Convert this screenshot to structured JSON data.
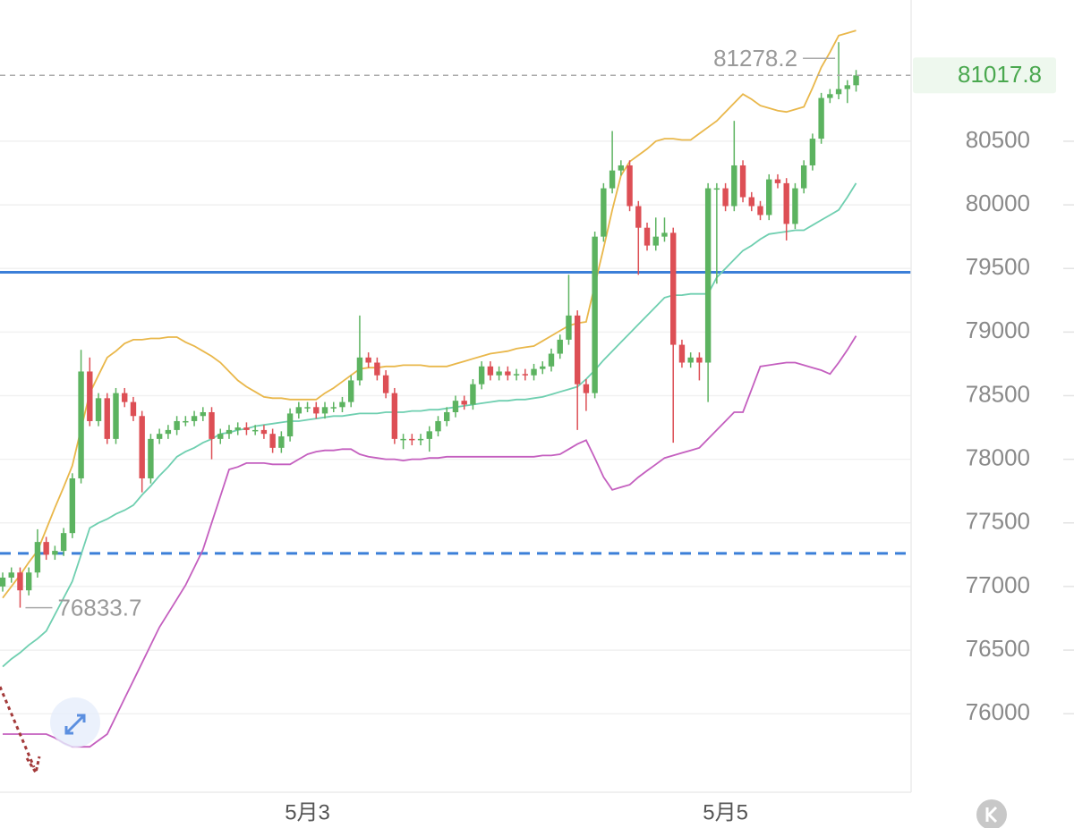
{
  "chart_data": {
    "type": "candlestick",
    "categories": [
      null,
      null,
      null,
      null,
      null,
      null,
      null,
      null,
      null,
      null,
      null,
      null,
      null,
      null,
      null,
      null,
      null,
      null,
      null,
      null,
      null,
      null,
      null,
      null,
      null,
      null,
      null,
      null,
      null,
      null,
      null,
      null,
      null,
      null,
      null,
      "5月3",
      null,
      null,
      null,
      null,
      null,
      null,
      null,
      null,
      null,
      null,
      null,
      null,
      null,
      null,
      null,
      null,
      null,
      null,
      null,
      null,
      null,
      null,
      null,
      null,
      null,
      null,
      null,
      null,
      null,
      null,
      null,
      null,
      null,
      null,
      null,
      null,
      null,
      null,
      null,
      null,
      null,
      null,
      null,
      null,
      null,
      null,
      null,
      "5月5",
      null,
      null,
      null,
      null,
      null,
      null,
      null,
      null,
      null,
      null,
      null,
      null,
      null,
      null,
      null
    ],
    "open": [
      77000,
      77070,
      77110,
      76970,
      77110,
      77350,
      77250,
      77280,
      77420,
      77850,
      78690,
      78300,
      78480,
      78160,
      78520,
      78450,
      78340,
      77850,
      78160,
      78200,
      78230,
      78300,
      78300,
      78340,
      78370,
      78160,
      78200,
      78230,
      78250,
      78230,
      78230,
      78200,
      78090,
      78180,
      78360,
      78410,
      78410,
      78360,
      78410,
      78410,
      78450,
      78620,
      78800,
      78760,
      78660,
      78520,
      78160,
      78160,
      78150,
      78160,
      78220,
      78300,
      78370,
      78460,
      78430,
      78590,
      78730,
      78660,
      78690,
      78660,
      78670,
      78660,
      78710,
      78730,
      78830,
      78940,
      79130,
      78590,
      78520,
      79750,
      80130,
      80270,
      80310,
      79990,
      79820,
      79680,
      79750,
      79780,
      78900,
      78760,
      78800,
      78760,
      80130,
      80130,
      79990,
      80310,
      80060,
      79990,
      79920,
      80200,
      80170,
      79850,
      80130,
      80310,
      80520,
      80840,
      80870,
      80910,
      80940
    ],
    "high": [
      77110,
      77150,
      77150,
      77150,
      77450,
      77390,
      77320,
      77460,
      77890,
      78860,
      78800,
      78520,
      78520,
      78560,
      78560,
      78490,
      78380,
      78200,
      78240,
      78270,
      78340,
      78340,
      78380,
      78410,
      78410,
      78240,
      78270,
      78290,
      78290,
      78270,
      78270,
      78240,
      78220,
      78400,
      78450,
      78450,
      78450,
      78450,
      78450,
      78490,
      78660,
      79130,
      78840,
      78800,
      78700,
      78560,
      78200,
      78200,
      78200,
      78260,
      78340,
      78410,
      78500,
      78500,
      78630,
      78770,
      78770,
      78730,
      78730,
      78710,
      78710,
      78750,
      78770,
      78870,
      78980,
      79450,
      79170,
      78630,
      79790,
      80170,
      80580,
      80350,
      80350,
      80030,
      79860,
      79900,
      79900,
      79820,
      78940,
      78840,
      78840,
      80170,
      80170,
      80170,
      80660,
      80350,
      80100,
      80030,
      80240,
      80240,
      80210,
      80170,
      80350,
      80560,
      80880,
      80910,
      81278.2,
      80980,
      81060
    ],
    "low": [
      76960,
      77030,
      76833.7,
      76930,
      77070,
      77210,
      77210,
      77240,
      77380,
      77810,
      78260,
      78260,
      78120,
      78120,
      78410,
      78300,
      77740,
      77810,
      78120,
      78160,
      78190,
      78260,
      78260,
      78300,
      78000,
      78120,
      78160,
      78190,
      78190,
      78190,
      78160,
      78050,
      78050,
      78140,
      78320,
      78370,
      78320,
      78320,
      78370,
      78370,
      78410,
      78580,
      78720,
      78620,
      78480,
      78120,
      78080,
      78110,
      78110,
      78060,
      78180,
      78260,
      78330,
      78390,
      78390,
      78550,
      78620,
      78620,
      78620,
      78620,
      78620,
      78620,
      78670,
      78690,
      78790,
      78900,
      78230,
      78380,
      78480,
      79710,
      80090,
      80230,
      79950,
      79450,
      79640,
      79640,
      79710,
      78130,
      78720,
      78720,
      78620,
      78450,
      79380,
      79950,
      79950,
      80020,
      79950,
      79880,
      79880,
      80130,
      79720,
      79810,
      80090,
      80270,
      80480,
      80800,
      80830,
      80800,
      80890
    ],
    "close": [
      77070,
      77110,
      76970,
      77110,
      77350,
      77250,
      77280,
      77420,
      77850,
      78690,
      78300,
      78480,
      78160,
      78520,
      78450,
      78340,
      77850,
      78160,
      78200,
      78230,
      78300,
      78300,
      78340,
      78370,
      78160,
      78200,
      78230,
      78250,
      78230,
      78230,
      78200,
      78090,
      78180,
      78360,
      78410,
      78410,
      78360,
      78410,
      78410,
      78450,
      78620,
      78800,
      78760,
      78660,
      78520,
      78160,
      78160,
      78150,
      78160,
      78220,
      78300,
      78370,
      78460,
      78430,
      78590,
      78730,
      78660,
      78690,
      78660,
      78670,
      78660,
      78710,
      78730,
      78830,
      78940,
      79130,
      78590,
      78520,
      79750,
      80130,
      80270,
      80310,
      79990,
      79820,
      79680,
      79750,
      79780,
      78900,
      78760,
      78800,
      78760,
      80130,
      80130,
      79990,
      80310,
      80060,
      79990,
      79920,
      80200,
      80170,
      79850,
      80130,
      80310,
      80520,
      80840,
      80870,
      80910,
      80940,
      81017.8
    ],
    "up_color": "#5cb360",
    "down_color": "#dd4f55",
    "overlays": [
      {
        "color": "#e9b74a",
        "values": [
          76910,
          77000,
          77090,
          77190,
          77280,
          77450,
          77620,
          77780,
          77950,
          78240,
          78520,
          78660,
          78800,
          78850,
          78910,
          78940,
          78940,
          78950,
          78950,
          78960,
          78960,
          78920,
          78890,
          78850,
          78810,
          78760,
          78690,
          78620,
          78570,
          78530,
          78490,
          78480,
          78480,
          78470,
          78470,
          78470,
          78470,
          78520,
          78560,
          78610,
          78660,
          78710,
          78720,
          78720,
          78730,
          78730,
          78740,
          78740,
          78740,
          78730,
          78730,
          78730,
          78750,
          78770,
          78790,
          78810,
          78830,
          78840,
          78850,
          78870,
          78880,
          78890,
          78930,
          78970,
          79010,
          79050,
          79070,
          79080,
          79370,
          79660,
          79960,
          80230,
          80340,
          80390,
          80440,
          80500,
          80520,
          80520,
          80510,
          80510,
          80560,
          80610,
          80660,
          80730,
          80800,
          80870,
          80830,
          80780,
          80760,
          80740,
          80730,
          80750,
          80770,
          80920,
          81080,
          81200,
          81330,
          81350,
          81370
        ]
      },
      {
        "color": "#6fcfb0",
        "values": [
          76370,
          76430,
          76480,
          76540,
          76590,
          76650,
          76780,
          76910,
          77040,
          77250,
          77460,
          77500,
          77530,
          77570,
          77600,
          77640,
          77720,
          77790,
          77870,
          77940,
          78020,
          78060,
          78090,
          78130,
          78160,
          78200,
          78210,
          78230,
          78240,
          78260,
          78270,
          78280,
          78290,
          78300,
          78300,
          78310,
          78320,
          78330,
          78340,
          78340,
          78350,
          78360,
          78360,
          78360,
          78370,
          78370,
          78370,
          78380,
          78380,
          78390,
          78390,
          78400,
          78410,
          78420,
          78430,
          78440,
          78450,
          78460,
          78460,
          78470,
          78470,
          78480,
          78490,
          78510,
          78530,
          78550,
          78570,
          78630,
          78700,
          78780,
          78850,
          78920,
          78990,
          79060,
          79130,
          79200,
          79270,
          79290,
          79290,
          79300,
          79300,
          79300,
          79430,
          79500,
          79570,
          79640,
          79680,
          79730,
          79770,
          79780,
          79790,
          79800,
          79800,
          79840,
          79880,
          79920,
          79960,
          80060,
          80170
        ]
      },
      {
        "color": "#c45fbf",
        "values": [
          75840,
          75840,
          75840,
          75840,
          75840,
          75840,
          75810,
          75770,
          75740,
          75740,
          75740,
          75790,
          75840,
          75980,
          76120,
          76260,
          76400,
          76540,
          76680,
          76790,
          76900,
          77010,
          77150,
          77290,
          77500,
          77710,
          77920,
          77940,
          77970,
          77970,
          77970,
          77960,
          77960,
          77960,
          78000,
          78040,
          78060,
          78070,
          78070,
          78080,
          78080,
          78040,
          78020,
          78010,
          78000,
          78000,
          77990,
          78000,
          78000,
          78010,
          78010,
          78020,
          78020,
          78020,
          78020,
          78020,
          78020,
          78020,
          78020,
          78020,
          78020,
          78020,
          78030,
          78030,
          78040,
          78080,
          78120,
          78150,
          78010,
          77860,
          77760,
          77780,
          77800,
          77860,
          77910,
          77960,
          78010,
          78030,
          78050,
          78070,
          78090,
          78160,
          78230,
          78300,
          78370,
          78370,
          78550,
          78730,
          78740,
          78750,
          78760,
          78760,
          78740,
          78720,
          78700,
          78670,
          78760,
          78860,
          78970
        ]
      }
    ],
    "hlines": [
      {
        "value": 79470,
        "color": "#3b7fd8",
        "style": "solid"
      },
      {
        "value": 77260,
        "color": "#3b7fd8",
        "style": "dashed"
      }
    ],
    "ylim": [
      75390,
      81610
    ],
    "yticks": [
      76000,
      76500,
      77000,
      77500,
      78000,
      78500,
      79000,
      79500,
      80000,
      80500
    ],
    "grid": true
  }
}
